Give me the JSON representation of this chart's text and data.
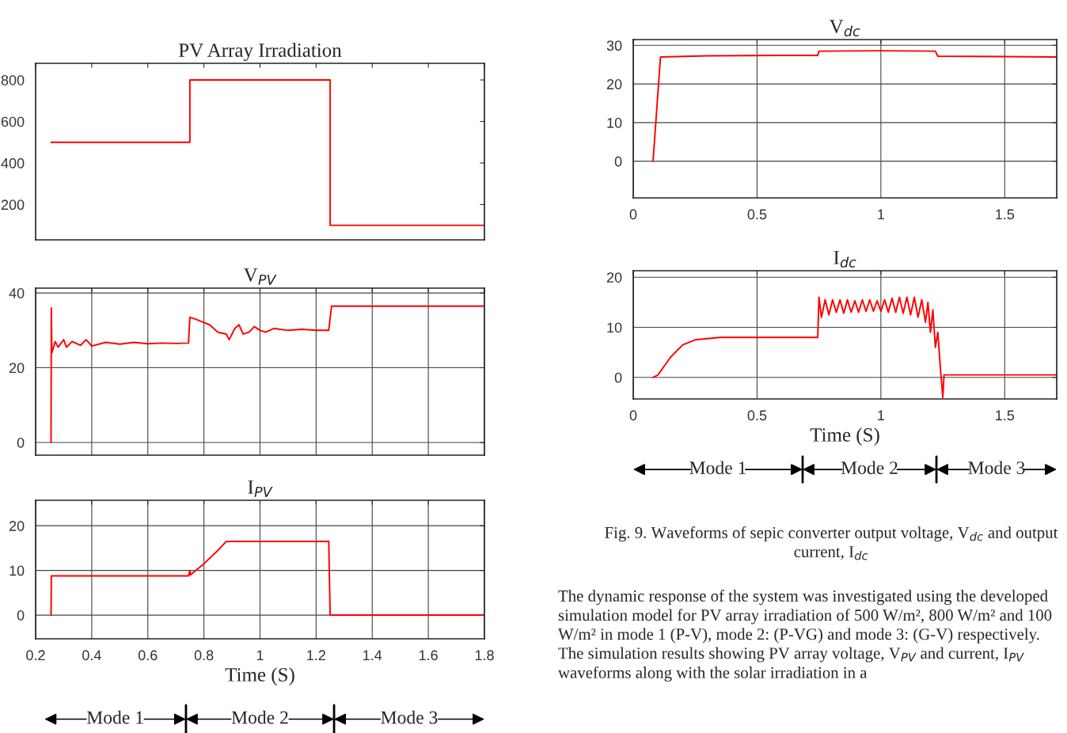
{
  "chart_data": [
    {
      "type": "step",
      "title": "PV Array Irradiation",
      "x": [
        0.255,
        0.75,
        1.25,
        1.8
      ],
      "series": [
        {
          "color": "#ff0000",
          "values": [
            500,
            800,
            100,
            100
          ]
        }
      ],
      "xlim": [
        0.2,
        1.8
      ],
      "xticks": [
        0.2,
        0.4,
        0.6,
        0.8,
        1,
        1.2,
        1.4,
        1.6,
        1.8
      ],
      "ylim": [
        30,
        880
      ],
      "yticks": [
        200,
        400,
        600,
        800
      ],
      "grid": false,
      "tick_labels": "y"
    },
    {
      "type": "line",
      "title": "V$_{PV}$",
      "x": [
        0.255,
        0.256,
        0.258,
        0.27,
        0.28,
        0.3,
        0.31,
        0.33,
        0.36,
        0.38,
        0.4,
        0.45,
        0.5,
        0.55,
        0.6,
        0.65,
        0.7,
        0.745,
        0.75,
        0.77,
        0.82,
        0.85,
        0.88,
        0.89,
        0.91,
        0.925,
        0.94,
        0.96,
        0.98,
        1.0,
        1.02,
        1.05,
        1.1,
        1.15,
        1.2,
        1.245,
        1.255,
        1.8
      ],
      "series": [
        {
          "color": "#ff0000",
          "values": [
            0,
            36,
            24,
            27,
            25.5,
            27.5,
            25.5,
            27,
            26,
            27.5,
            25.8,
            26.8,
            26.3,
            26.8,
            26.4,
            26.6,
            26.5,
            26.6,
            33.5,
            33,
            31.5,
            29.5,
            29,
            27.5,
            30.5,
            31.5,
            29,
            29.5,
            31,
            30,
            29.5,
            30.5,
            30,
            30.3,
            30,
            30,
            36.5,
            36.5
          ]
        }
      ],
      "xlim": [
        0.2,
        1.8
      ],
      "xticks": [
        0.2,
        0.4,
        0.6,
        0.8,
        1,
        1.2,
        1.4,
        1.6,
        1.8
      ],
      "ylim": [
        -3.4,
        41.3
      ],
      "yticks": [
        0,
        20,
        40
      ],
      "grid": true,
      "tick_labels": "y"
    },
    {
      "type": "line",
      "title": "I$_{PV}$",
      "xlabel": "Time (S)",
      "x": [
        0.255,
        0.256,
        0.745,
        0.75,
        0.752,
        0.8,
        0.85,
        0.88,
        1.245,
        1.25,
        1.8
      ],
      "series": [
        {
          "color": "#ff0000",
          "values": [
            0,
            8.8,
            8.8,
            10,
            9,
            11.5,
            14.5,
            16.5,
            16.5,
            0,
            0
          ]
        }
      ],
      "xlim": [
        0.2,
        1.8
      ],
      "xticks": [
        0.2,
        0.4,
        0.6,
        0.8,
        1,
        1.2,
        1.4,
        1.6,
        1.8
      ],
      "ylim": [
        -5.3,
        25.7
      ],
      "yticks": [
        0,
        10,
        20
      ],
      "grid": true,
      "annotations": [
        "Mode 1",
        "Mode 2",
        "Mode 3"
      ]
    },
    {
      "type": "line",
      "title": "V$_{dc}$",
      "x": [
        0.08,
        0.11,
        0.3,
        0.6,
        0.745,
        0.75,
        1.0,
        1.22,
        1.23,
        1.71
      ],
      "series": [
        {
          "color": "#ff0000",
          "values": [
            0,
            27,
            27.3,
            27.4,
            27.4,
            28.5,
            28.6,
            28.5,
            27.2,
            27
          ]
        }
      ],
      "xlim": [
        0,
        1.71
      ],
      "xticks": [
        0,
        0.5,
        1,
        1.5
      ],
      "ylim": [
        -9.5,
        31.5
      ],
      "yticks": [
        0,
        10,
        20,
        30
      ],
      "grid": true
    },
    {
      "type": "line",
      "title": "I$_{dc}$",
      "xlabel": "Time (S)",
      "x": [
        0.08,
        0.1,
        0.15,
        0.2,
        0.25,
        0.35,
        0.745,
        0.75,
        0.76,
        0.775,
        0.79,
        0.805,
        0.82,
        0.835,
        0.85,
        0.865,
        0.88,
        0.895,
        0.91,
        0.925,
        0.94,
        0.955,
        0.97,
        0.985,
        1.0,
        1.015,
        1.03,
        1.045,
        1.06,
        1.075,
        1.09,
        1.105,
        1.12,
        1.135,
        1.15,
        1.165,
        1.18,
        1.19,
        1.2,
        1.21,
        1.22,
        1.23,
        1.24,
        1.25,
        1.255,
        1.71
      ],
      "series": [
        {
          "color": "#ff0000",
          "values": [
            0,
            0.5,
            4,
            6.5,
            7.5,
            8,
            8,
            16,
            12,
            15.5,
            12.5,
            15.5,
            13,
            15.5,
            12.8,
            15.5,
            13,
            15.3,
            13,
            15.5,
            13.2,
            15.5,
            13.2,
            15.3,
            13.2,
            15.5,
            13,
            15.8,
            13,
            16,
            12.8,
            16,
            12.5,
            16,
            12,
            15.5,
            11,
            15,
            9,
            13.5,
            6,
            9,
            2,
            -4,
            0.5,
            0.5
          ]
        }
      ],
      "xlim": [
        0,
        1.71
      ],
      "xticks": [
        0,
        0.5,
        1,
        1.5
      ],
      "ylim": [
        -4.3,
        21.3
      ],
      "yticks": [
        0,
        10,
        20
      ],
      "grid": true,
      "annotations": [
        "Mode 1",
        "Mode 2",
        "Mode 3",
        "Fig. 9. Waveforms of sepic converter output voltage, V$_{dc}$ and output current, I$_{dc}$",
        "The dynamic response of the system was investigated using the developed simulation model for PV array irradiation of 500 W/m², 800 W/m² and 100 W/m² in mode 1 (P-V), mode 2: (P-VG) and mode 3: (G-V) respectively. The simulation results showing PV array voltage, V$_{PV}$ and current, I$_{PV}$ waveforms along with the solar irradiation in a"
      ]
    }
  ]
}
